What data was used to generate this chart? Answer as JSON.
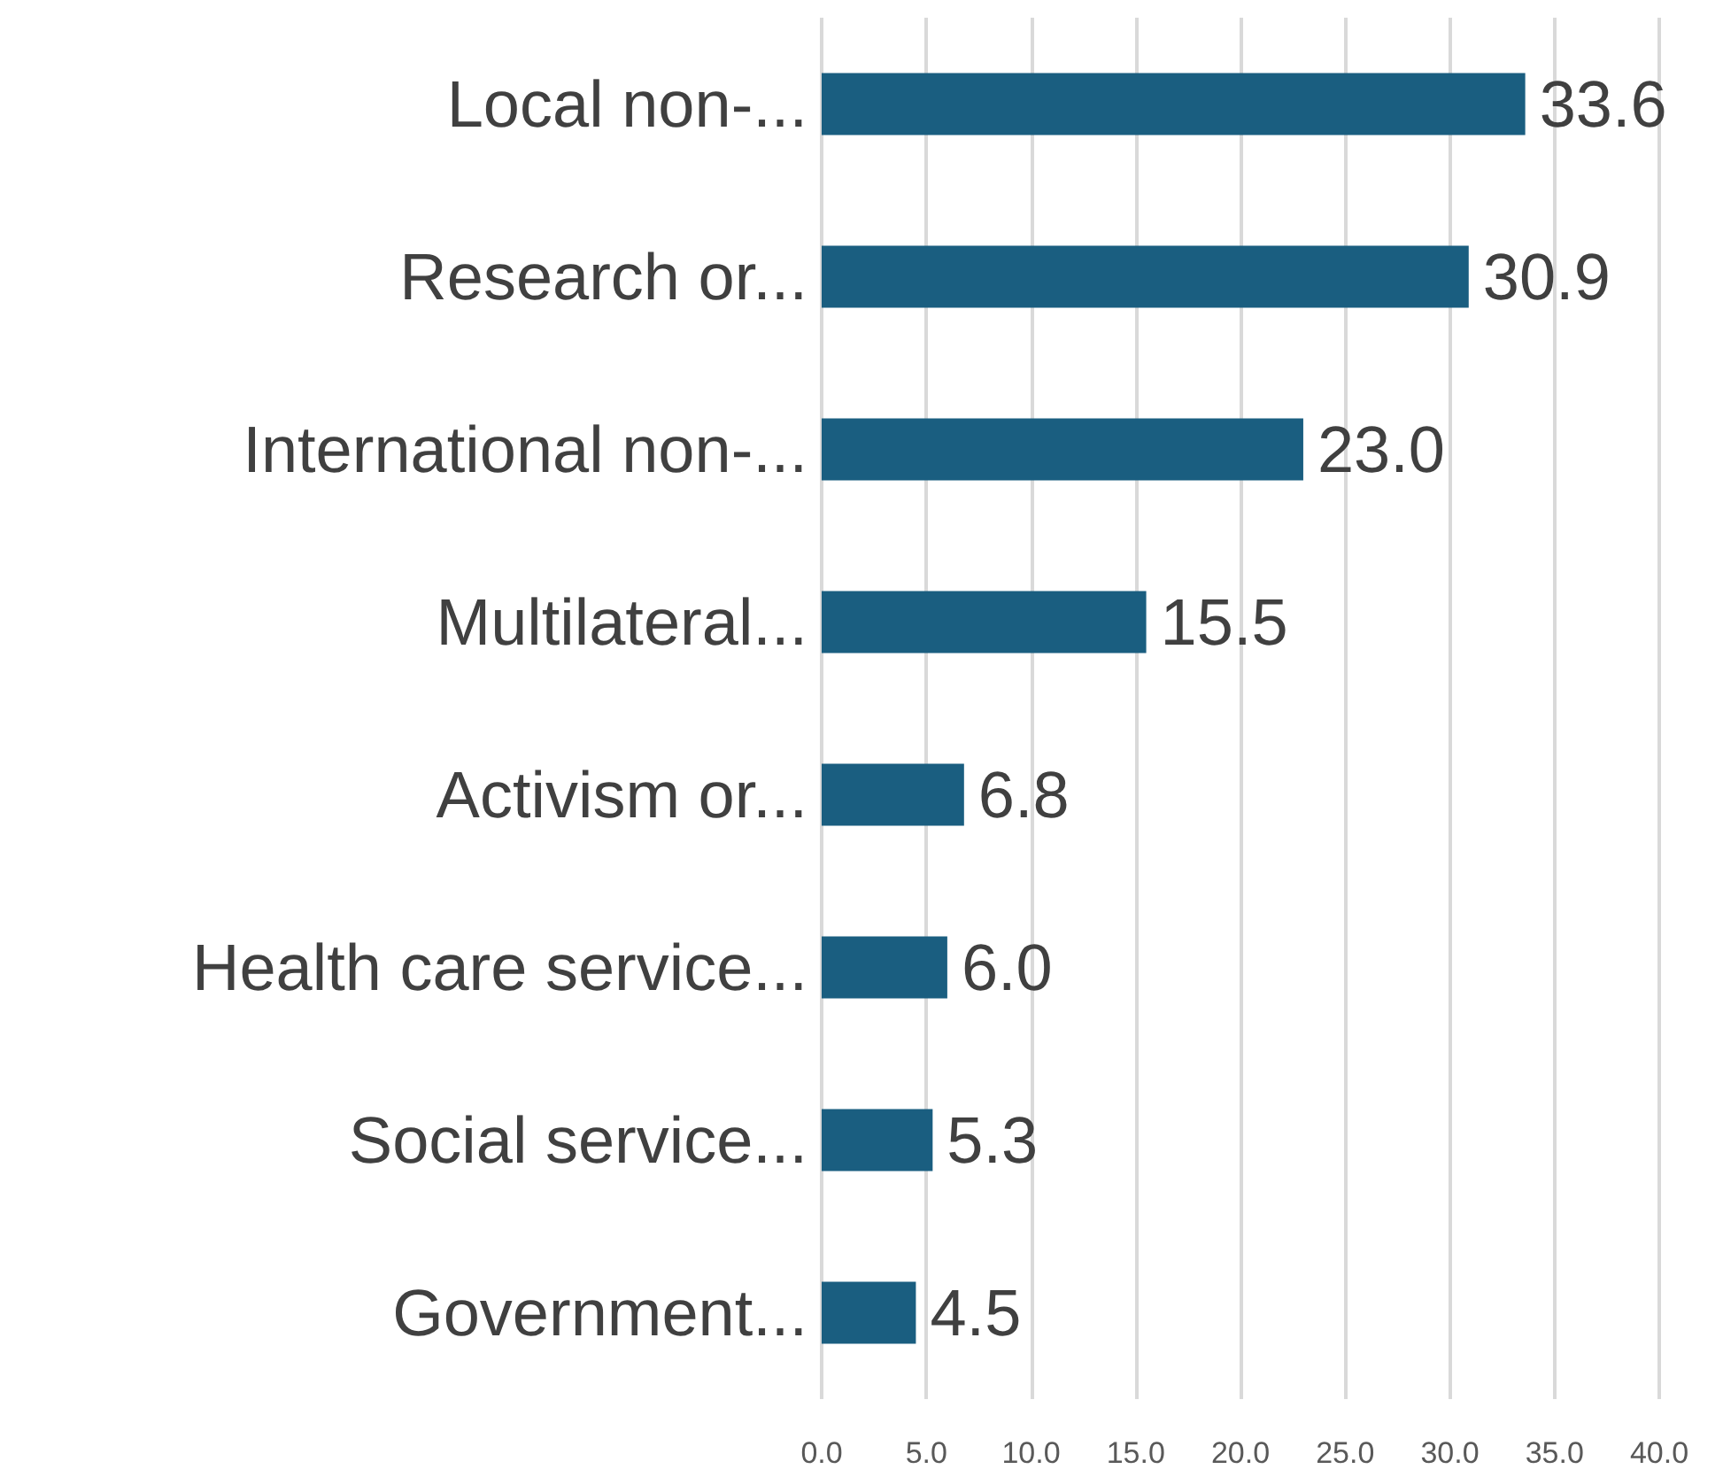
{
  "chart_data": {
    "type": "bar",
    "orientation": "horizontal",
    "categories": [
      "Local non-...",
      "Research or...",
      "International non-...",
      "Multilateral...",
      "Activism or...",
      "Health care service...",
      "Social service...",
      "Government..."
    ],
    "values": [
      33.6,
      30.9,
      23.0,
      15.5,
      6.8,
      6.0,
      5.3,
      4.5
    ],
    "value_labels": [
      "33.6",
      "30.9",
      "23.0",
      "15.5",
      "6.8",
      "6.0",
      "5.3",
      "4.5"
    ],
    "color": "#1a5e80",
    "xlim": [
      0,
      40
    ],
    "xticks": [
      {
        "value": 0,
        "label": "0.0"
      },
      {
        "value": 5,
        "label": "5.0"
      },
      {
        "value": 10,
        "label": "10.0"
      },
      {
        "value": 15,
        "label": "15.0"
      },
      {
        "value": 20,
        "label": "20.0"
      },
      {
        "value": 25,
        "label": "25.0"
      },
      {
        "value": 30,
        "label": "30.0"
      },
      {
        "value": 35,
        "label": "35.0"
      },
      {
        "value": 40,
        "label": "40.0"
      }
    ],
    "grid": "x"
  }
}
